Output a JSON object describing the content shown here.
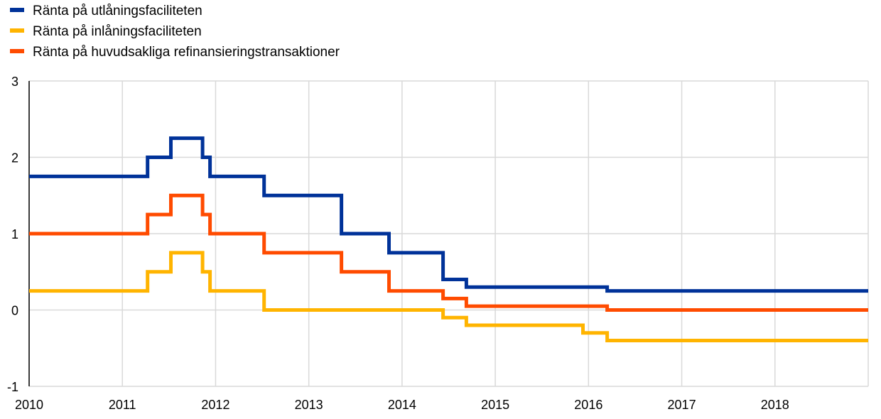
{
  "chart_data": {
    "type": "line",
    "step": true,
    "title": "",
    "xlabel": "",
    "ylabel": "",
    "xlim": [
      2010.0,
      2019.0
    ],
    "ylim": [
      -1,
      3
    ],
    "x_ticks": [
      "2010",
      "2011",
      "2012",
      "2013",
      "2014",
      "2015",
      "2016",
      "2017",
      "2018"
    ],
    "y_ticks": [
      "3",
      "2",
      "1",
      "0",
      "-1"
    ],
    "grid": "vertical and horizontal",
    "legend_position": "top-left",
    "series": [
      {
        "name": "Ränta på utlåningsfaciliteten",
        "color": "#003299",
        "points": [
          [
            2010.0,
            1.75
          ],
          [
            2011.27,
            2.0
          ],
          [
            2011.52,
            2.25
          ],
          [
            2011.86,
            2.0
          ],
          [
            2011.94,
            1.75
          ],
          [
            2012.52,
            1.5
          ],
          [
            2013.35,
            1.0
          ],
          [
            2013.86,
            0.75
          ],
          [
            2014.44,
            0.4
          ],
          [
            2014.69,
            0.3
          ],
          [
            2016.2,
            0.25
          ],
          [
            2019.0,
            0.25
          ]
        ]
      },
      {
        "name": "Ränta på inlåningsfaciliteten",
        "color": "#FFB400",
        "points": [
          [
            2010.0,
            0.25
          ],
          [
            2011.27,
            0.5
          ],
          [
            2011.52,
            0.75
          ],
          [
            2011.86,
            0.5
          ],
          [
            2011.94,
            0.25
          ],
          [
            2012.52,
            0.0
          ],
          [
            2014.44,
            -0.1
          ],
          [
            2014.69,
            -0.2
          ],
          [
            2015.94,
            -0.3
          ],
          [
            2016.2,
            -0.4
          ],
          [
            2019.0,
            -0.4
          ]
        ]
      },
      {
        "name": "Ränta på huvudsakliga refinansieringstransaktioner",
        "color": "#FF4B00",
        "points": [
          [
            2010.0,
            1.0
          ],
          [
            2011.27,
            1.25
          ],
          [
            2011.52,
            1.5
          ],
          [
            2011.86,
            1.25
          ],
          [
            2011.94,
            1.0
          ],
          [
            2012.52,
            0.75
          ],
          [
            2013.35,
            0.5
          ],
          [
            2013.86,
            0.25
          ],
          [
            2014.44,
            0.15
          ],
          [
            2014.69,
            0.05
          ],
          [
            2016.2,
            0.0
          ],
          [
            2019.0,
            0.0
          ]
        ]
      }
    ]
  }
}
